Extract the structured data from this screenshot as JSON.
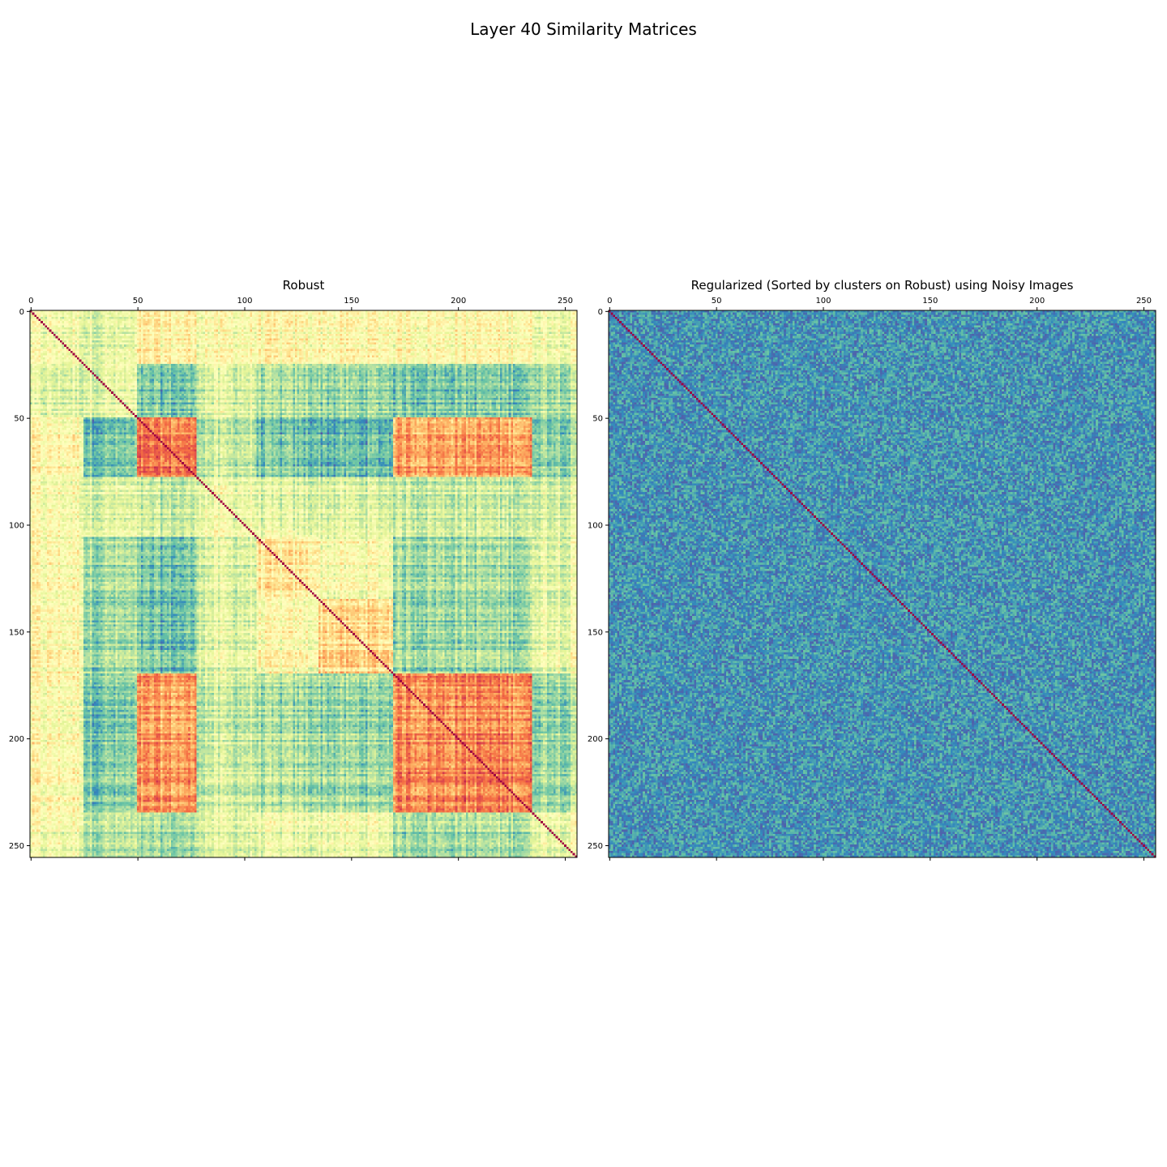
{
  "figure": {
    "suptitle": "Layer 40 Similarity Matrices"
  },
  "chart_data": [
    {
      "type": "heatmap",
      "title": "Robust",
      "size": 256,
      "x_ticks": [
        0,
        50,
        100,
        150,
        200,
        250
      ],
      "y_ticks": [
        0,
        50,
        100,
        150,
        200,
        250
      ],
      "xlim": [
        0,
        256
      ],
      "ylim": [
        256,
        0
      ],
      "x_tick_position": "top",
      "colormap": "Spectral_r",
      "diagonal_value": 1.0,
      "cluster_boundaries": [
        0,
        25,
        50,
        78,
        106,
        135,
        170,
        235,
        256
      ],
      "cluster_block_similarity": [
        [
          0.45,
          0.4,
          0.52,
          0.48,
          0.5,
          0.5,
          0.5,
          0.46
        ],
        [
          0.4,
          0.42,
          0.22,
          0.4,
          0.3,
          0.28,
          0.24,
          0.32
        ],
        [
          0.52,
          0.22,
          0.78,
          0.35,
          0.22,
          0.2,
          0.72,
          0.28
        ],
        [
          0.48,
          0.4,
          0.35,
          0.45,
          0.4,
          0.4,
          0.36,
          0.4
        ],
        [
          0.5,
          0.3,
          0.22,
          0.4,
          0.55,
          0.48,
          0.3,
          0.42
        ],
        [
          0.5,
          0.28,
          0.2,
          0.4,
          0.48,
          0.6,
          0.28,
          0.44
        ],
        [
          0.5,
          0.24,
          0.72,
          0.36,
          0.3,
          0.28,
          0.76,
          0.3
        ],
        [
          0.46,
          0.32,
          0.28,
          0.4,
          0.42,
          0.44,
          0.3,
          0.45
        ]
      ]
    },
    {
      "type": "heatmap",
      "title": "Regularized (Sorted by clusters on Robust) using Noisy Images",
      "size": 256,
      "x_ticks": [
        0,
        50,
        100,
        150,
        200,
        250
      ],
      "y_ticks": [
        0,
        50,
        100,
        150,
        200,
        250
      ],
      "xlim": [
        0,
        256
      ],
      "ylim": [
        256,
        0
      ],
      "x_tick_position": "top",
      "colormap": "Spectral_r",
      "diagonal_value": 1.0,
      "off_diagonal_mean": 0.12,
      "off_diagonal_spread": 0.05
    }
  ]
}
